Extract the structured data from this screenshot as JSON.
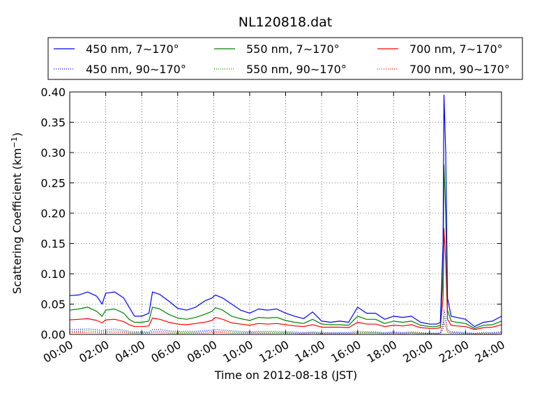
{
  "chart_data": {
    "type": "line",
    "title": "NL120818.dat",
    "xlabel": "Time on 2012-08-18 (JST)",
    "ylabel": "Scattering Coefficient (km",
    "ylabel_sup": "−1",
    "ylabel_end": ")",
    "xlim": [
      0,
      24
    ],
    "ylim": [
      0,
      0.4
    ],
    "x_unit": "hours",
    "grid": true,
    "legend_position": "top",
    "x_ticks": [
      {
        "value": 0,
        "label": "00:00"
      },
      {
        "value": 2,
        "label": "02:00"
      },
      {
        "value": 4,
        "label": "04:00"
      },
      {
        "value": 6,
        "label": "06:00"
      },
      {
        "value": 8,
        "label": "08:00"
      },
      {
        "value": 10,
        "label": "10:00"
      },
      {
        "value": 12,
        "label": "12:00"
      },
      {
        "value": 14,
        "label": "14:00"
      },
      {
        "value": 16,
        "label": "16:00"
      },
      {
        "value": 18,
        "label": "18:00"
      },
      {
        "value": 20,
        "label": "20:00"
      },
      {
        "value": 22,
        "label": "22:00"
      },
      {
        "value": 24,
        "label": "24:00"
      }
    ],
    "y_ticks": [
      {
        "value": 0.0,
        "label": "0.00"
      },
      {
        "value": 0.05,
        "label": "0.05"
      },
      {
        "value": 0.1,
        "label": "0.10"
      },
      {
        "value": 0.15,
        "label": "0.15"
      },
      {
        "value": 0.2,
        "label": "0.20"
      },
      {
        "value": 0.25,
        "label": "0.25"
      },
      {
        "value": 0.3,
        "label": "0.30"
      },
      {
        "value": 0.35,
        "label": "0.35"
      },
      {
        "value": 0.4,
        "label": "0.40"
      }
    ],
    "x": [
      0,
      0.5,
      1,
      1.5,
      1.8,
      2,
      2.5,
      3,
      3.3,
      3.6,
      4,
      4.4,
      4.6,
      5,
      5.5,
      6,
      6.5,
      7,
      7.5,
      7.9,
      8.1,
      8.5,
      9,
      9.5,
      10,
      10.5,
      11,
      11.5,
      12,
      12.5,
      13,
      13.5,
      14,
      14.5,
      15,
      15.5,
      16,
      16.5,
      17,
      17.5,
      18,
      18.5,
      19,
      19.5,
      20,
      20.4,
      20.6,
      20.75,
      20.8,
      20.9,
      21.0,
      21.2,
      21.5,
      22,
      22.5,
      23,
      23.5,
      24
    ],
    "series": [
      {
        "name": "450 nm, 7∼170°",
        "color": "#0000ff",
        "style": "solid",
        "values": [
          0.064,
          0.065,
          0.07,
          0.063,
          0.05,
          0.068,
          0.07,
          0.06,
          0.045,
          0.03,
          0.03,
          0.035,
          0.07,
          0.066,
          0.055,
          0.043,
          0.04,
          0.045,
          0.055,
          0.06,
          0.065,
          0.06,
          0.05,
          0.04,
          0.035,
          0.042,
          0.04,
          0.042,
          0.035,
          0.03,
          0.026,
          0.037,
          0.022,
          0.02,
          0.022,
          0.02,
          0.045,
          0.035,
          0.035,
          0.025,
          0.03,
          0.028,
          0.03,
          0.02,
          0.017,
          0.017,
          0.02,
          0.15,
          0.395,
          0.3,
          0.06,
          0.03,
          0.028,
          0.025,
          0.013,
          0.02,
          0.022,
          0.03
        ]
      },
      {
        "name": "550 nm, 7∼170°",
        "color": "#008000",
        "style": "solid",
        "values": [
          0.04,
          0.042,
          0.045,
          0.038,
          0.03,
          0.04,
          0.042,
          0.035,
          0.025,
          0.02,
          0.02,
          0.022,
          0.045,
          0.042,
          0.033,
          0.027,
          0.025,
          0.028,
          0.033,
          0.038,
          0.044,
          0.04,
          0.03,
          0.026,
          0.023,
          0.028,
          0.027,
          0.028,
          0.023,
          0.02,
          0.018,
          0.025,
          0.017,
          0.016,
          0.016,
          0.015,
          0.03,
          0.025,
          0.025,
          0.018,
          0.022,
          0.02,
          0.022,
          0.015,
          0.013,
          0.013,
          0.015,
          0.1,
          0.28,
          0.2,
          0.04,
          0.022,
          0.02,
          0.018,
          0.01,
          0.015,
          0.016,
          0.022
        ]
      },
      {
        "name": "700 nm, 7∼170°",
        "color": "#ff0000",
        "style": "solid",
        "values": [
          0.024,
          0.025,
          0.026,
          0.023,
          0.019,
          0.024,
          0.025,
          0.021,
          0.016,
          0.013,
          0.013,
          0.014,
          0.027,
          0.025,
          0.02,
          0.017,
          0.016,
          0.018,
          0.02,
          0.023,
          0.028,
          0.025,
          0.019,
          0.017,
          0.015,
          0.018,
          0.017,
          0.018,
          0.016,
          0.014,
          0.013,
          0.016,
          0.012,
          0.012,
          0.012,
          0.011,
          0.02,
          0.017,
          0.017,
          0.013,
          0.015,
          0.014,
          0.016,
          0.011,
          0.01,
          0.01,
          0.011,
          0.06,
          0.175,
          0.12,
          0.025,
          0.015,
          0.014,
          0.013,
          0.008,
          0.011,
          0.012,
          0.016
        ]
      },
      {
        "name": "450 nm, 90∼170°",
        "color": "#0000ff",
        "style": "dotted",
        "values": [
          0.008,
          0.008,
          0.009,
          0.008,
          0.006,
          0.008,
          0.009,
          0.007,
          0.005,
          0.004,
          0.004,
          0.004,
          0.008,
          0.008,
          0.006,
          0.005,
          0.005,
          0.005,
          0.006,
          0.007,
          0.008,
          0.007,
          0.006,
          0.005,
          0.004,
          0.005,
          0.005,
          0.005,
          0.004,
          0.004,
          0.003,
          0.004,
          0.003,
          0.003,
          0.003,
          0.003,
          0.005,
          0.004,
          0.004,
          0.003,
          0.004,
          0.003,
          0.004,
          0.003,
          0.002,
          0.002,
          0.003,
          0.02,
          0.04,
          0.03,
          0.008,
          0.004,
          0.004,
          0.003,
          0.002,
          0.003,
          0.003,
          0.004
        ]
      },
      {
        "name": "550 nm, 90∼170°",
        "color": "#008000",
        "style": "dotted",
        "values": [
          0.005,
          0.005,
          0.006,
          0.005,
          0.004,
          0.005,
          0.006,
          0.005,
          0.003,
          0.003,
          0.003,
          0.003,
          0.005,
          0.005,
          0.004,
          0.003,
          0.003,
          0.003,
          0.004,
          0.005,
          0.005,
          0.005,
          0.004,
          0.003,
          0.003,
          0.003,
          0.003,
          0.003,
          0.003,
          0.002,
          0.002,
          0.003,
          0.002,
          0.002,
          0.002,
          0.002,
          0.003,
          0.003,
          0.003,
          0.002,
          0.003,
          0.002,
          0.003,
          0.002,
          0.002,
          0.002,
          0.002,
          0.013,
          0.03,
          0.02,
          0.005,
          0.003,
          0.003,
          0.002,
          0.001,
          0.002,
          0.002,
          0.003
        ]
      },
      {
        "name": "700 nm, 90∼170°",
        "color": "#ff0000",
        "style": "dotted",
        "values": [
          0.003,
          0.003,
          0.003,
          0.003,
          0.002,
          0.003,
          0.003,
          0.003,
          0.002,
          0.002,
          0.002,
          0.002,
          0.003,
          0.003,
          0.002,
          0.002,
          0.002,
          0.002,
          0.002,
          0.003,
          0.003,
          0.003,
          0.002,
          0.002,
          0.002,
          0.002,
          0.002,
          0.002,
          0.002,
          0.002,
          0.001,
          0.002,
          0.001,
          0.001,
          0.001,
          0.001,
          0.002,
          0.002,
          0.002,
          0.001,
          0.002,
          0.001,
          0.002,
          0.001,
          0.001,
          0.001,
          0.001,
          0.008,
          0.02,
          0.012,
          0.003,
          0.002,
          0.002,
          0.001,
          0.001,
          0.001,
          0.001,
          0.002
        ]
      }
    ],
    "legend_order": [
      0,
      1,
      2,
      3,
      4,
      5
    ]
  }
}
